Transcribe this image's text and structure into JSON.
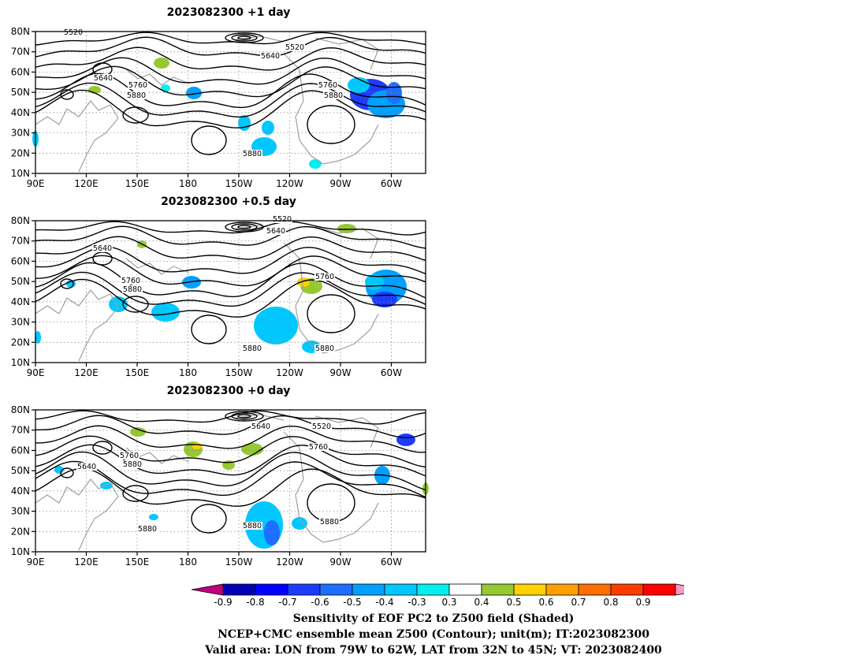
{
  "panels": [
    {
      "title": "2023082300  +1  day",
      "contour_labels": [
        "5520",
        "5520",
        "5640",
        "5640",
        "5760",
        "5760",
        "5880",
        "5880",
        "5880"
      ]
    },
    {
      "title": "2023082300  +0.5  day",
      "contour_labels": [
        "5520",
        "5640",
        "5640",
        "5760",
        "5760",
        "5880",
        "5880",
        "5880"
      ]
    },
    {
      "title": "2023082300  +0  day",
      "contour_labels": [
        "5640",
        "5520",
        "5760",
        "5640",
        "5760",
        "5880",
        "5880",
        "5880",
        "5880"
      ]
    }
  ],
  "axes": {
    "lat_ticks": [
      "80N",
      "70N",
      "60N",
      "50N",
      "40N",
      "30N",
      "20N",
      "10N"
    ],
    "lon_ticks": [
      "90E",
      "120E",
      "150E",
      "180",
      "150W",
      "120W",
      "90W",
      "60W"
    ]
  },
  "colorbar": {
    "tick_labels": [
      "-0.9",
      "-0.8",
      "-0.7",
      "-0.6",
      "-0.5",
      "-0.4",
      "-0.3",
      "0.3",
      "0.4",
      "0.5",
      "0.6",
      "0.7",
      "0.8",
      "0.9"
    ],
    "colors": [
      "#c0007e",
      "#0000b4",
      "#0000ff",
      "#1e3cff",
      "#1e6eff",
      "#00a0ff",
      "#00c8ff",
      "#00f0f0",
      "#ffffff",
      "#96c832",
      "#ffd200",
      "#ffa000",
      "#ff6e00",
      "#ff3c00",
      "#ff0000",
      "#ff96c8"
    ]
  },
  "caption": {
    "line1": "Sensitivity of EOF PC2 to Z500 field (Shaded)",
    "line2": "NCEP+CMC ensemble mean Z500 (Contour); unit(m); IT:2023082300",
    "line3": "Valid area: LON from 79W to 62W, LAT from 32N to 45N; VT: 2023082400"
  }
}
